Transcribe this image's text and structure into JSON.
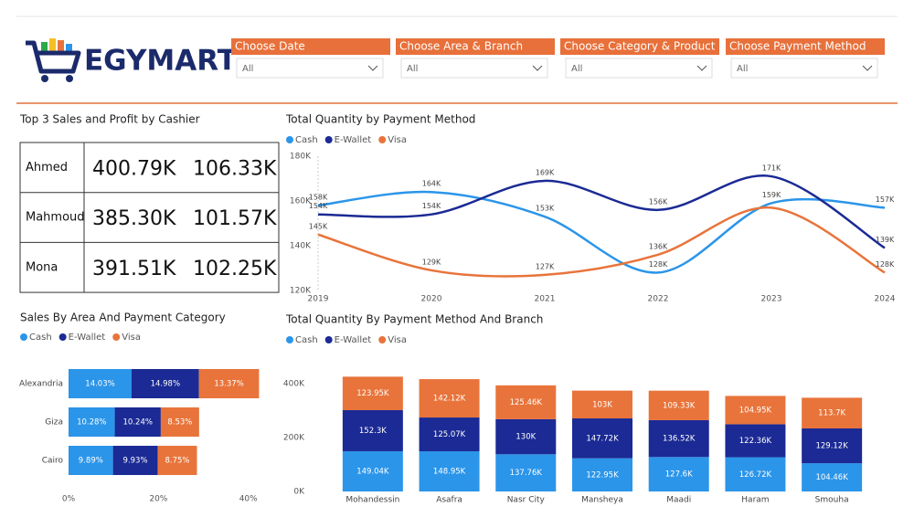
{
  "header": {
    "logo_text": "EGYMART"
  },
  "filters": [
    {
      "label": "Choose Date",
      "value": "All"
    },
    {
      "label": "Choose Area & Branch",
      "value": "All"
    },
    {
      "label": "Choose Category & Product",
      "value": "All"
    },
    {
      "label": "Choose Payment Method",
      "value": "All"
    }
  ],
  "cashier_table": {
    "title": "Top 3 Sales and Profit by Cashier",
    "rows": [
      [
        "Ahmed",
        "400.79K",
        "106.33K"
      ],
      [
        "Mahmoud",
        "385.30K",
        "101.57K"
      ],
      [
        "Mona",
        "391.51K",
        "102.25K"
      ]
    ]
  },
  "chart_data": [
    {
      "type": "line",
      "title": "Total Quantity by Payment Method",
      "categories": [
        "2019",
        "2020",
        "2021",
        "2022",
        "2023",
        "2024"
      ],
      "series": [
        {
          "name": "Cash",
          "color": "#2b95e9",
          "values": [
            158000,
            164000,
            153000,
            128000,
            159000,
            157000
          ],
          "value_labels": [
            "158K",
            "164K",
            "153K",
            "128K",
            "159K",
            "157K"
          ]
        },
        {
          "name": "E-Wallet",
          "color": "#1b2a94",
          "values": [
            154000,
            154000,
            169000,
            156000,
            171000,
            139000
          ],
          "value_labels": [
            "154K",
            "154K",
            "169K",
            "156K",
            "171K",
            "139K"
          ]
        },
        {
          "name": "Visa",
          "color": "#e8743b",
          "values": [
            145000,
            129000,
            127000,
            136000,
            157000,
            128000
          ],
          "value_labels": [
            "145K",
            "129K",
            "127K",
            "136K",
            null,
            "128K"
          ]
        }
      ],
      "ylim": [
        120000,
        180000
      ],
      "yticks": [
        {
          "value": 120000,
          "label": "120K"
        },
        {
          "value": 140000,
          "label": "140K"
        },
        {
          "value": 160000,
          "label": "160K"
        },
        {
          "value": 180000,
          "label": "180K"
        }
      ],
      "grid": false
    },
    {
      "type": "bar",
      "orientation": "horizontal",
      "stacked": true,
      "title": "Sales By Area And Payment Category",
      "categories": [
        "Alexandria",
        "Giza",
        "Cairo"
      ],
      "series": [
        {
          "name": "Cash",
          "color": "#2b95e9",
          "values": [
            14.03,
            10.28,
            9.89
          ],
          "value_labels": [
            "14.03%",
            "10.28%",
            "9.89%"
          ]
        },
        {
          "name": "E-Wallet",
          "color": "#1b2a94",
          "values": [
            14.98,
            10.24,
            9.93
          ],
          "value_labels": [
            "14.98%",
            "10.24%",
            "9.93%"
          ]
        },
        {
          "name": "Visa",
          "color": "#e8743b",
          "values": [
            13.37,
            8.53,
            8.75
          ],
          "value_labels": [
            "13.37%",
            "8.53%",
            "8.75%"
          ]
        }
      ],
      "xlim": [
        0,
        42.5
      ],
      "xticks": [
        {
          "value": 0,
          "label": "0%"
        },
        {
          "value": 20,
          "label": "20%"
        },
        {
          "value": 40,
          "label": "40%"
        }
      ]
    },
    {
      "type": "bar",
      "orientation": "vertical",
      "stacked": true,
      "title": "Total Quantity By Payment Method And Branch",
      "categories": [
        "Mohandessin",
        "Asafra",
        "Nasr City",
        "Mansheya",
        "Maadi",
        "Haram",
        "Smouha"
      ],
      "series": [
        {
          "name": "Cash",
          "color": "#2b95e9",
          "values": [
            149040,
            148950,
            137760,
            122950,
            127600,
            126720,
            104460
          ],
          "value_labels": [
            "149.04K",
            "148.95K",
            "137.76K",
            "122.95K",
            "127.6K",
            "126.72K",
            "104.46K"
          ]
        },
        {
          "name": "E-Wallet",
          "color": "#1b2a94",
          "values": [
            152300,
            125070,
            130000,
            147720,
            136520,
            122360,
            129120
          ],
          "value_labels": [
            "152.3K",
            "125.07K",
            "130K",
            "147.72K",
            "136.52K",
            "122.36K",
            "129.12K"
          ]
        },
        {
          "name": "Visa",
          "color": "#e8743b",
          "values": [
            123950,
            142120,
            125460,
            103000,
            109330,
            104950,
            113700
          ],
          "value_labels": [
            "123.95K",
            "142.12K",
            "125.46K",
            "103K",
            "109.33K",
            "104.95K",
            "113.7K"
          ]
        }
      ],
      "ylim": [
        0,
        440000
      ],
      "yticks": [
        {
          "value": 0,
          "label": "0K"
        },
        {
          "value": 200000,
          "label": "200K"
        },
        {
          "value": 400000,
          "label": "400K"
        }
      ]
    }
  ]
}
